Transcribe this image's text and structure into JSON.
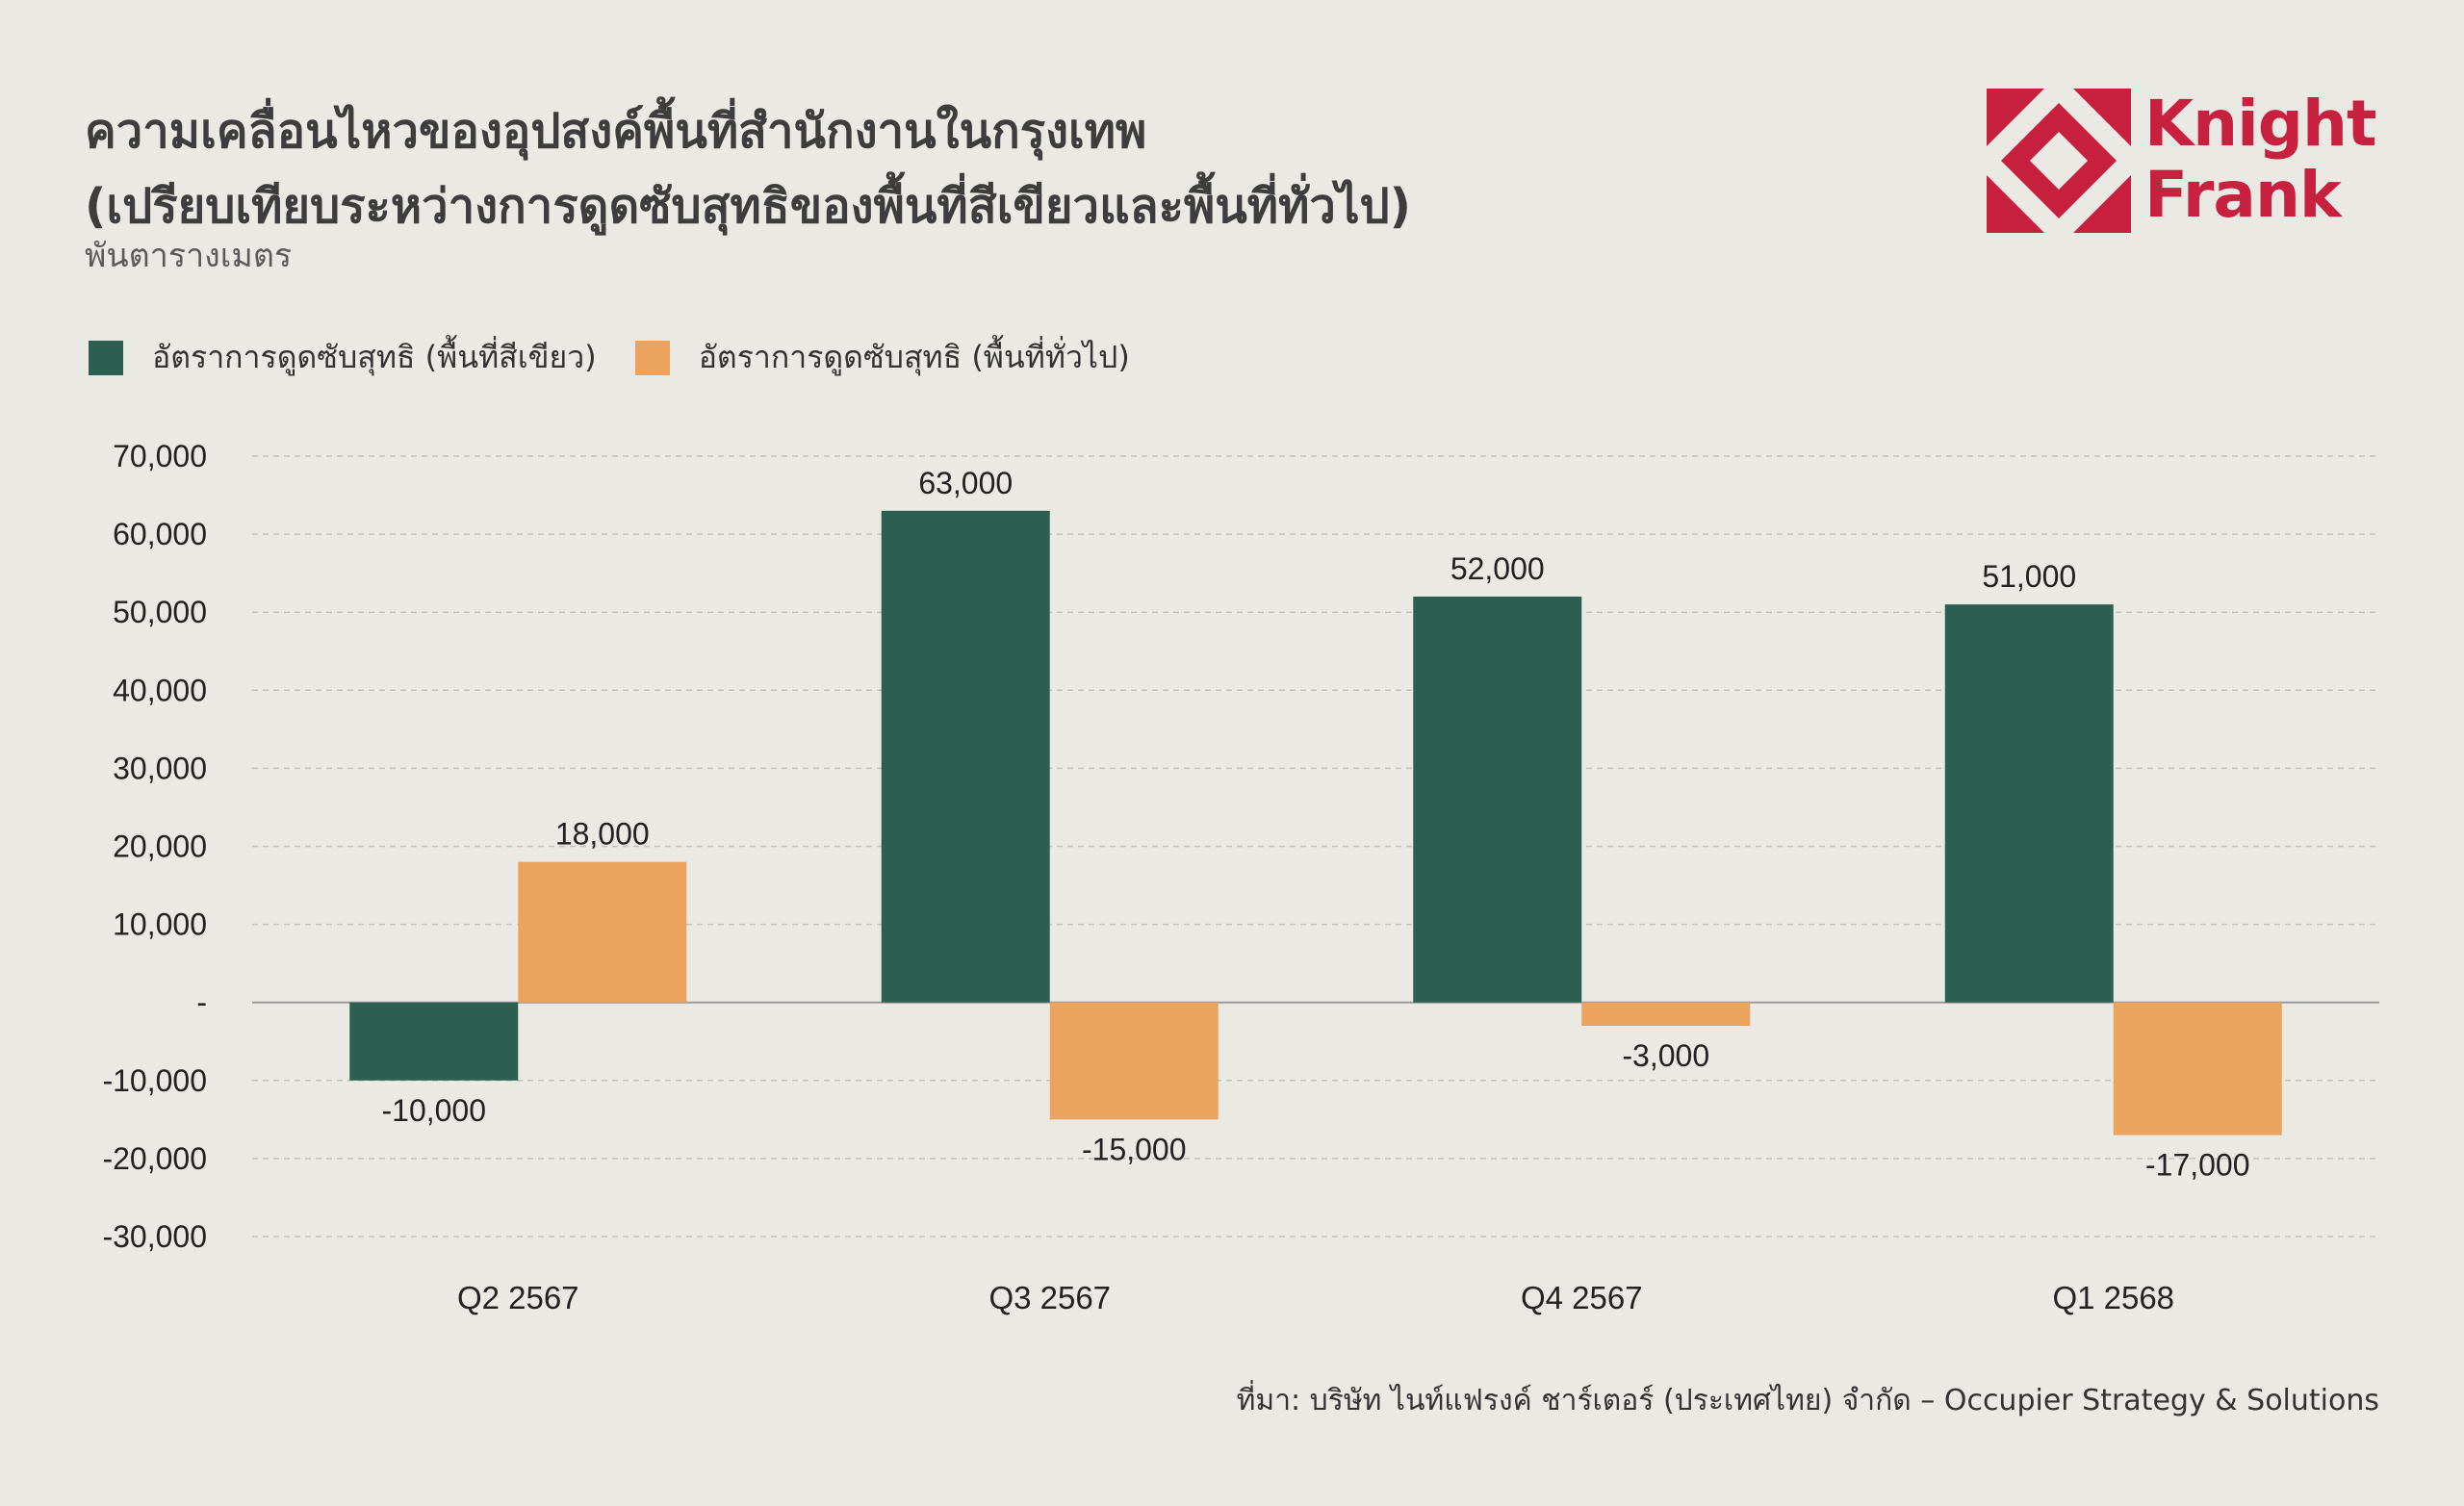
{
  "header": {
    "title_line1": "ความเคลื่อนไหวของอุปสงค์พื้นที่สำนักงานในกรุงเทพ",
    "title_line2": "(เปรียบเทียบระหว่างการดูดซับสุทธิของพื้นที่สีเขียวและพื้นที่ทั่วไป)",
    "unit": "พันตารางเมตร"
  },
  "logo": {
    "line1": "Knight",
    "line2": "Frank",
    "color": "#c8203f",
    "icon": "knight-frank-diamond-logo-icon"
  },
  "footer": {
    "source": "ที่มา: บริษัท ไนท์แฟรงค์ ชาร์เตอร์ (ประเทศไทย) จำกัด – Occupier Strategy & Solutions"
  },
  "chart_data": {
    "type": "bar",
    "categories": [
      "Q2 2567",
      "Q3 2567",
      "Q4 2567",
      "Q1 2568"
    ],
    "series": [
      {
        "name": "อัตราการดูดซับสุทธิ (พื้นที่สีเขียว)",
        "color": "#2d5f50",
        "values": [
          -10000,
          63000,
          52000,
          51000
        ]
      },
      {
        "name": "อัตราการดูดซับสุทธิ (พื้นที่ทั่วไป)",
        "color": "#eba35e",
        "values": [
          18000,
          -15000,
          -3000,
          -17000
        ]
      }
    ],
    "data_labels": [
      [
        "-10,000",
        "63,000",
        "52,000",
        "51,000"
      ],
      [
        "18,000",
        "-15,000",
        "-3,000",
        "-17,000"
      ]
    ],
    "yticks": [
      70000,
      60000,
      50000,
      40000,
      30000,
      20000,
      10000,
      0,
      -10000,
      -20000,
      -30000
    ],
    "ytick_labels": [
      "70,000",
      "60,000",
      "50,000",
      "40,000",
      "30,000",
      "20,000",
      "10,000",
      "-",
      "-10,000",
      "-20,000",
      "-30,000"
    ],
    "ylim": [
      -30000,
      70000
    ],
    "grid": true,
    "legend_position": "top-left"
  }
}
